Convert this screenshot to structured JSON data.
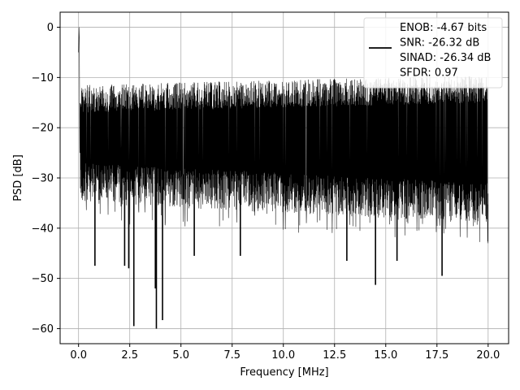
{
  "chart_data": {
    "type": "line",
    "title": "",
    "xlabel": "Frequency [MHz]",
    "ylabel": "PSD [dB]",
    "xlim": [
      -0.9,
      21.0
    ],
    "ylim": [
      -63,
      3
    ],
    "xticks": [
      0.0,
      2.5,
      5.0,
      7.5,
      10.0,
      12.5,
      15.0,
      17.5,
      20.0
    ],
    "xtick_labels": [
      "0.0",
      "2.5",
      "5.0",
      "7.5",
      "10.0",
      "12.5",
      "15.0",
      "17.5",
      "20.0"
    ],
    "yticks": [
      0,
      -10,
      -20,
      -30,
      -40,
      -50,
      -60
    ],
    "ytick_labels": [
      "0",
      "−10",
      "−20",
      "−30",
      "−40",
      "−50",
      "−60"
    ],
    "grid": true,
    "legend": {
      "placement": "top-right",
      "entries": [
        "ENOB: -4.67 bits",
        "SNR: -26.32 dB",
        "SINAD: -26.34 dB",
        "SFDR: 0.97"
      ]
    },
    "series": [
      {
        "color": "#000000",
        "x_range": [
          0.0,
          20.0
        ],
        "dc_peak": 0,
        "band_upper_db": [
          -10,
          -8
        ],
        "band_lower_db": [
          -33,
          -37
        ],
        "deep_dips": [
          {
            "x": 2.7,
            "y": -59.5
          },
          {
            "x": 3.8,
            "y": -60.0
          },
          {
            "x": 4.1,
            "y": -58.3
          },
          {
            "x": 3.75,
            "y": -52.0
          },
          {
            "x": 2.45,
            "y": -48.0
          },
          {
            "x": 14.5,
            "y": -51.3
          },
          {
            "x": 17.75,
            "y": -49.5
          },
          {
            "x": 0.8,
            "y": -47.5
          },
          {
            "x": 2.25,
            "y": -47.5
          },
          {
            "x": 5.65,
            "y": -45.5
          },
          {
            "x": 7.9,
            "y": -45.5
          },
          {
            "x": 13.1,
            "y": -46.5
          },
          {
            "x": 15.55,
            "y": -46.5
          }
        ]
      }
    ]
  }
}
